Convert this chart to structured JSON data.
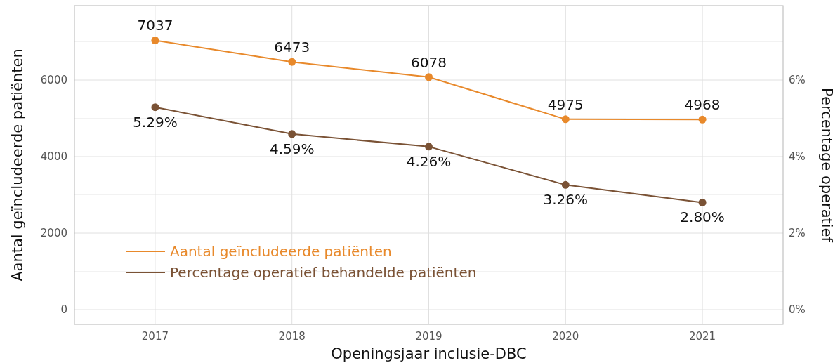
{
  "chart_data": {
    "type": "line",
    "xlabel": "Openingsjaar inclusie-DBC",
    "ylabel": "Aantal geïncludeerde patiënten",
    "y2label": "Percentage operatief",
    "categories": [
      "2017",
      "2018",
      "2019",
      "2020",
      "2021"
    ],
    "series": [
      {
        "name": "Aantal geïncludeerde patiënten",
        "color": "#e8892b",
        "values": [
          7037,
          6473,
          6078,
          4975,
          4968
        ],
        "value_labels": [
          "7037",
          "6473",
          "6078",
          "4975",
          "4968"
        ]
      },
      {
        "name": "Percentage operatief behandelde patiënten",
        "color": "#7a5235",
        "axis": "y2",
        "values": [
          5.29,
          4.59,
          4.26,
          3.26,
          2.8
        ],
        "value_labels": [
          "5.29%",
          "4.59%",
          "4.26%",
          "3.26%",
          "2.80%"
        ]
      }
    ],
    "ylim": [
      -385,
      7945
    ],
    "yticks": [
      0,
      2000,
      4000,
      6000
    ],
    "y2lim": [
      -0.385,
      7.945
    ],
    "y2ticks": [
      {
        "value": 0,
        "label": "0%"
      },
      {
        "value": 2,
        "label": "2%"
      },
      {
        "value": 4,
        "label": "4%"
      },
      {
        "value": 6,
        "label": "6%"
      }
    ],
    "grid": true,
    "legend": "bottom left",
    "marker": "circle",
    "line_style": "solid"
  }
}
